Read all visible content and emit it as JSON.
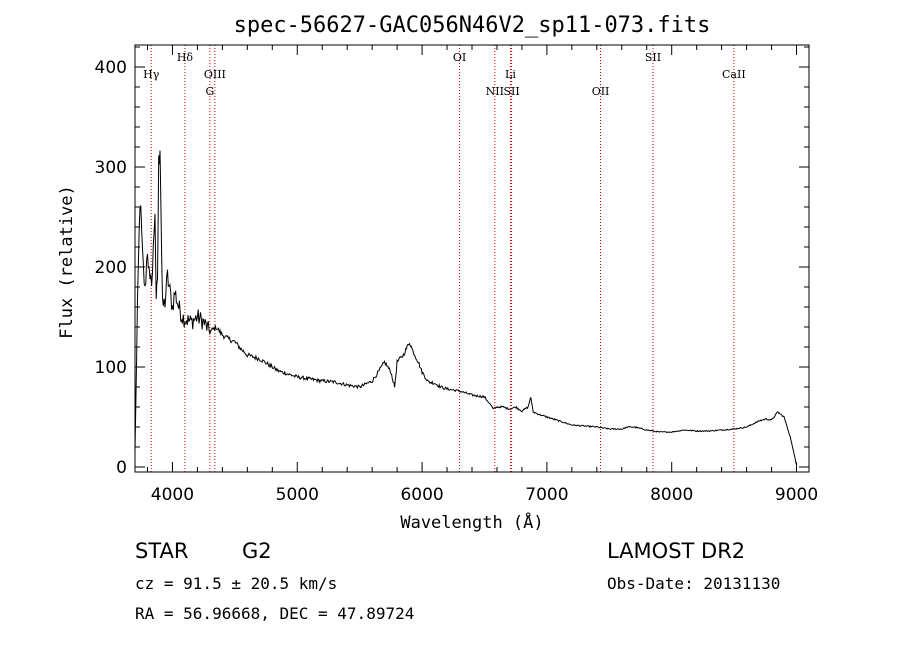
{
  "chart_data": {
    "type": "line",
    "title": "spec-56627-GAC056N46V2_sp11-073.fits",
    "xlabel": "Wavelength (Å)",
    "ylabel": "Flux (relative)",
    "xlim": [
      3700,
      9100
    ],
    "ylim": [
      -5,
      422
    ],
    "x_ticks": [
      4000,
      5000,
      6000,
      7000,
      8000,
      9000
    ],
    "y_ticks": [
      0,
      100,
      200,
      300,
      400
    ],
    "grid": false,
    "series": [
      {
        "x": [
          3700,
          3720,
          3740,
          3760,
          3780,
          3800,
          3820,
          3840,
          3860,
          3870,
          3880,
          3890,
          3900,
          3910,
          3920,
          3940,
          3960,
          3980,
          4000,
          4020,
          4050,
          4080,
          4100,
          4150,
          4200,
          4250,
          4300,
          4350,
          4400,
          4450,
          4500,
          4550,
          4600,
          4650,
          4700,
          4750,
          4800,
          4850,
          4900,
          4950,
          5000,
          5100,
          5200,
          5300,
          5400,
          5500,
          5600,
          5650,
          5700,
          5750,
          5780,
          5800,
          5850,
          5900,
          5920,
          5950,
          5970,
          6000,
          6050,
          6100,
          6150,
          6200,
          6300,
          6400,
          6500,
          6550,
          6570,
          6600,
          6650,
          6700,
          6750,
          6800,
          6850,
          6870,
          6890,
          6950,
          7000,
          7100,
          7200,
          7300,
          7400,
          7500,
          7600,
          7650,
          7700,
          7800,
          7900,
          8000,
          8100,
          8200,
          8300,
          8400,
          8500,
          8600,
          8700,
          8750,
          8800,
          8850,
          8900,
          8950,
          9000
        ],
        "y": [
          15,
          160,
          270,
          210,
          175,
          220,
          180,
          195,
          260,
          160,
          190,
          300,
          330,
          245,
          160,
          165,
          190,
          175,
          160,
          175,
          160,
          150,
          148,
          145,
          150,
          145,
          135,
          140,
          132,
          128,
          125,
          118,
          112,
          110,
          108,
          104,
          100,
          96,
          94,
          92,
          90,
          88,
          86,
          85,
          82,
          80,
          86,
          95,
          105,
          95,
          80,
          105,
          112,
          125,
          118,
          110,
          105,
          95,
          85,
          84,
          80,
          78,
          76,
          72,
          70,
          62,
          58,
          60,
          60,
          58,
          60,
          56,
          60,
          70,
          55,
          52,
          50,
          46,
          42,
          41,
          40,
          38,
          38,
          40,
          40,
          37,
          35,
          35,
          37,
          36,
          36,
          37,
          38,
          40,
          46,
          48,
          47,
          55,
          50,
          30,
          2
        ]
      }
    ],
    "line_markers": [
      {
        "label": "Hγ",
        "x": 3830,
        "row": 1
      },
      {
        "label": "Hδ",
        "x": 4100,
        "row": 0
      },
      {
        "label": "OIII",
        "x": 4340,
        "row": 1
      },
      {
        "label": "G",
        "x": 4300,
        "row": 2
      },
      {
        "label": "OI",
        "x": 6300,
        "row": 0
      },
      {
        "label": "NII",
        "x": 6583,
        "row": 2
      },
      {
        "label": "SII",
        "x": 6717,
        "row": 2
      },
      {
        "label": "Li",
        "x": 6708,
        "row": 1
      },
      {
        "label": "OII",
        "x": 7430,
        "row": 2
      },
      {
        "label": "SII",
        "x": 7850,
        "row": 0
      },
      {
        "label": "CaII",
        "x": 8498,
        "row": 1
      }
    ],
    "line_marker_color": "#cc0000",
    "marker_x_lines": [
      3830,
      4100,
      4300,
      4340,
      6300,
      6583,
      6708,
      6717,
      7430,
      7850,
      8498
    ]
  },
  "info": {
    "class_label": "STAR",
    "subclass": "G2",
    "survey": "LAMOST DR2",
    "cz": "cz = 91.5 ± 20.5 km/s",
    "obs_date": "Obs-Date: 20131130",
    "radec": "RA =  56.96668, DEC =  47.89724"
  }
}
